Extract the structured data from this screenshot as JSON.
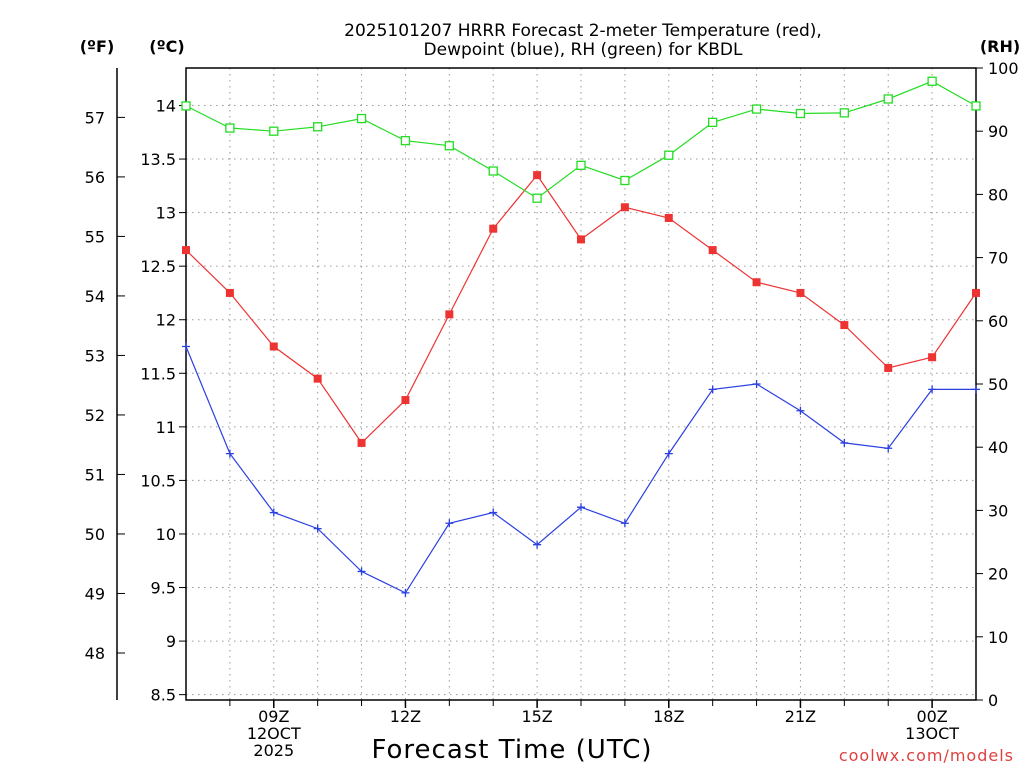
{
  "chart_data": {
    "type": "line",
    "title_line1": "2025101207 HRRR Forecast 2-meter Temperature (red),",
    "title_line2": "Dewpoint (blue), RH (green) for KBDL",
    "xlabel": "Forecast Time (UTC)",
    "credit": "coolwx.com/models",
    "unit_labels": {
      "fahrenheit": "(ºF)",
      "celsius": "(ºC)",
      "rh": "(RH)"
    },
    "x_hours": [
      7,
      8,
      9,
      10,
      11,
      12,
      13,
      14,
      15,
      16,
      17,
      18,
      19,
      20,
      21,
      22,
      23,
      24,
      25
    ],
    "x_ticks": [
      {
        "hour": 9,
        "line1": "09Z",
        "line2": "12OCT",
        "line3": "2025"
      },
      {
        "hour": 12,
        "line1": "12Z",
        "line2": "",
        "line3": ""
      },
      {
        "hour": 15,
        "line1": "15Z",
        "line2": "",
        "line3": ""
      },
      {
        "hour": 18,
        "line1": "18Z",
        "line2": "",
        "line3": ""
      },
      {
        "hour": 21,
        "line1": "21Z",
        "line2": "",
        "line3": ""
      },
      {
        "hour": 24,
        "line1": "00Z",
        "line2": "13OCT",
        "line3": ""
      }
    ],
    "xlim": [
      7,
      25
    ],
    "celsius_axis": {
      "ylim": [
        8.45,
        14.35
      ],
      "ticks": [
        "8.5",
        "9",
        "9.5",
        "10",
        "10.5",
        "11",
        "11.5",
        "12",
        "12.5",
        "13",
        "13.5",
        "14"
      ]
    },
    "fahrenheit_axis": {
      "ticks": [
        "48",
        "49",
        "50",
        "51",
        "52",
        "53",
        "54",
        "55",
        "56",
        "57"
      ]
    },
    "rh_axis": {
      "ylim": [
        0,
        100
      ],
      "ticks": [
        "0",
        "10",
        "20",
        "30",
        "40",
        "50",
        "60",
        "70",
        "80",
        "90",
        "100"
      ]
    },
    "series": [
      {
        "name": "Temperature",
        "axis": "celsius",
        "color": "#ee3333",
        "marker": "filled-square",
        "values": [
          12.65,
          12.25,
          11.75,
          11.45,
          10.85,
          11.25,
          12.05,
          12.85,
          13.35,
          12.75,
          13.05,
          12.95,
          12.65,
          12.35,
          12.25,
          11.95,
          11.55,
          11.65,
          12.25
        ]
      },
      {
        "name": "Dewpoint",
        "axis": "celsius",
        "color": "#2a3fe0",
        "marker": "plus",
        "values": [
          11.75,
          10.75,
          10.2,
          10.05,
          9.65,
          9.45,
          10.1,
          10.2,
          9.9,
          10.25,
          10.1,
          10.75,
          11.35,
          11.4,
          11.15,
          10.85,
          10.8,
          11.35,
          11.35
        ]
      },
      {
        "name": "RH",
        "axis": "rh",
        "color": "#22dd22",
        "marker": "open-square",
        "values": [
          94,
          90.5,
          90,
          90.7,
          92,
          88.5,
          87.7,
          83.7,
          79.4,
          84.6,
          82.2,
          86.2,
          91.4,
          93.5,
          92.8,
          92.9,
          95.1,
          97.9,
          94
        ]
      }
    ]
  }
}
